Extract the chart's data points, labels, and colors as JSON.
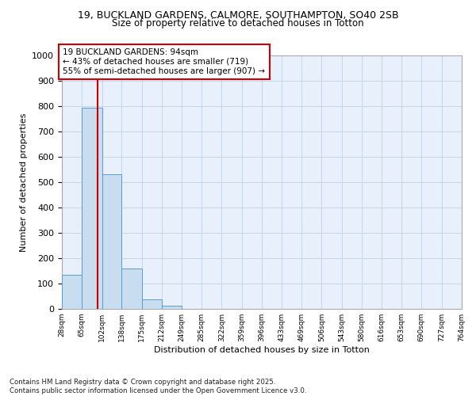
{
  "title_line1": "19, BUCKLAND GARDENS, CALMORE, SOUTHAMPTON, SO40 2SB",
  "title_line2": "Size of property relative to detached houses in Totton",
  "xlabel": "Distribution of detached houses by size in Totton",
  "ylabel": "Number of detached properties",
  "bin_edges": [
    28,
    65,
    102,
    138,
    175,
    212,
    249,
    285,
    322,
    359,
    396,
    433,
    469,
    506,
    543,
    580,
    616,
    653,
    690,
    727,
    764
  ],
  "bar_heights": [
    135,
    795,
    530,
    160,
    38,
    12,
    0,
    0,
    0,
    0,
    0,
    0,
    0,
    0,
    0,
    0,
    0,
    0,
    0,
    0
  ],
  "bar_facecolor": "#c8ddf0",
  "bar_edgecolor": "#5b9bd5",
  "property_size": 94,
  "annotation_text": "19 BUCKLAND GARDENS: 94sqm\n← 43% of detached houses are smaller (719)\n55% of semi-detached houses are larger (907) →",
  "vline_color": "#cc0000",
  "grid_color": "#c5d8ea",
  "bg_color": "#e8f1fb",
  "ylim": [
    0,
    1000
  ],
  "footer_text": "Contains HM Land Registry data © Crown copyright and database right 2025.\nContains public sector information licensed under the Open Government Licence v3.0.",
  "tick_labels": [
    "28sqm",
    "65sqm",
    "102sqm",
    "138sqm",
    "175sqm",
    "212sqm",
    "249sqm",
    "285sqm",
    "322sqm",
    "359sqm",
    "396sqm",
    "433sqm",
    "469sqm",
    "506sqm",
    "543sqm",
    "580sqm",
    "616sqm",
    "653sqm",
    "690sqm",
    "727sqm",
    "764sqm"
  ],
  "yticks": [
    0,
    100,
    200,
    300,
    400,
    500,
    600,
    700,
    800,
    900,
    1000
  ]
}
